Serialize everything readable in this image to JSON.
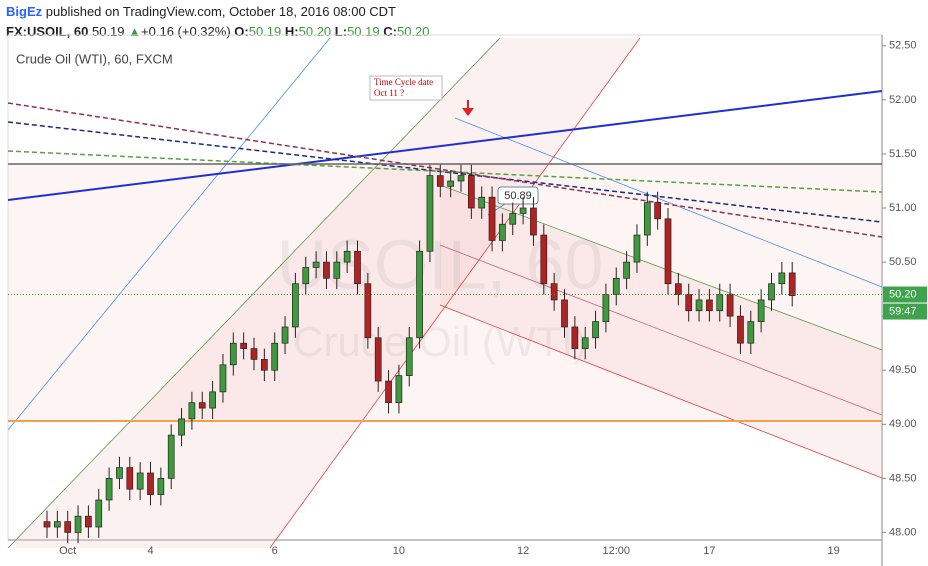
{
  "header": {
    "author": "BigEz",
    "published": "published on TradingView.com, October 18, 2016 08:00 CDT",
    "symbol": "FX:USOIL, 60",
    "last": "50.19",
    "arrow": "▲",
    "change": "+0.16 (+0.32%)",
    "o_label": "O:",
    "open": "50.19",
    "h_label": "H:",
    "high": "50.20",
    "l_label": "L:",
    "low": "50.19",
    "c_label": "C:",
    "close": "50.20"
  },
  "chart": {
    "watermark": "USOIL, 60",
    "watermark_sub": "Crude Oil (WTI)",
    "note_1": "Time Cycle date",
    "note_2": "Oct 11 ?",
    "callout": "50.89",
    "last_label": "50.20",
    "countdown": "59:47"
  },
  "chart_data": {
    "type": "candlestick",
    "title": "Crude Oil (WTI), 60, FXCM",
    "categories": [
      null,
      null,
      "Oct",
      null,
      null,
      null,
      null,
      null,
      null,
      null,
      "4",
      null,
      null,
      null,
      null,
      null,
      null,
      null,
      null,
      null,
      null,
      null,
      "6",
      null,
      null,
      null,
      null,
      null,
      null,
      null,
      null,
      null,
      null,
      null,
      "10",
      null,
      null,
      null,
      null,
      null,
      null,
      null,
      null,
      null,
      null,
      null,
      "12",
      null,
      null,
      null,
      null,
      null,
      null,
      null,
      null,
      "12:00",
      null,
      null,
      null,
      null,
      null,
      null,
      null,
      null,
      "17",
      null,
      null,
      null,
      null,
      null,
      null,
      null,
      null,
      null,
      null,
      null,
      "19"
    ],
    "open": [
      48.1,
      48.05,
      48.1,
      48.0,
      48.15,
      48.05,
      48.3,
      48.5,
      48.6,
      48.4,
      48.55,
      48.35,
      48.5,
      48.9,
      49.05,
      49.2,
      49.15,
      49.3,
      49.55,
      49.75,
      49.7,
      49.6,
      49.5,
      49.75,
      49.9,
      50.3,
      50.45,
      50.5,
      50.35,
      50.5,
      50.6,
      50.3,
      49.8,
      49.4,
      49.2,
      49.45,
      49.8,
      50.6,
      51.3,
      51.2,
      51.25,
      51.3,
      51.0,
      51.1,
      50.7,
      50.85,
      50.95,
      51.0,
      50.75,
      50.3,
      50.15,
      49.9,
      49.7,
      49.8,
      49.95,
      50.2,
      50.35,
      50.5,
      50.75,
      51.05,
      50.9,
      50.3,
      50.2,
      50.05,
      50.15,
      50.05,
      50.2,
      50.0,
      49.75,
      49.95,
      50.15,
      50.3,
      50.4,
      null,
      null,
      null,
      null
    ],
    "high": [
      48.2,
      48.2,
      48.2,
      48.25,
      48.25,
      48.4,
      48.6,
      48.7,
      48.7,
      48.65,
      48.65,
      48.6,
      49.0,
      49.15,
      49.3,
      49.3,
      49.4,
      49.65,
      49.85,
      49.85,
      49.8,
      49.7,
      49.85,
      50.0,
      50.4,
      50.55,
      50.6,
      50.6,
      50.6,
      50.7,
      50.7,
      50.4,
      49.9,
      49.5,
      49.55,
      49.9,
      50.7,
      51.4,
      51.4,
      51.35,
      51.4,
      51.4,
      51.2,
      51.2,
      50.95,
      51.05,
      51.1,
      51.1,
      50.85,
      50.4,
      50.25,
      50.0,
      49.9,
      50.05,
      50.3,
      50.45,
      50.6,
      50.85,
      51.15,
      51.15,
      51.0,
      50.4,
      50.3,
      50.25,
      50.25,
      50.3,
      50.3,
      50.1,
      50.05,
      50.25,
      50.4,
      50.5,
      50.5,
      null,
      null,
      null,
      null
    ],
    "low": [
      47.95,
      47.95,
      47.9,
      47.9,
      47.95,
      47.95,
      48.2,
      48.4,
      48.3,
      48.3,
      48.25,
      48.25,
      48.4,
      48.8,
      48.95,
      49.05,
      49.05,
      49.2,
      49.45,
      49.6,
      49.5,
      49.4,
      49.4,
      49.65,
      49.8,
      50.2,
      50.35,
      50.25,
      50.25,
      50.4,
      50.2,
      49.7,
      49.3,
      49.1,
      49.1,
      49.35,
      49.7,
      50.5,
      51.1,
      51.1,
      51.15,
      50.9,
      50.9,
      50.6,
      50.6,
      50.75,
      50.85,
      50.65,
      50.2,
      50.05,
      49.8,
      49.6,
      49.6,
      49.7,
      49.85,
      50.1,
      50.25,
      50.4,
      50.65,
      50.8,
      50.2,
      50.1,
      49.95,
      49.95,
      49.95,
      49.95,
      49.9,
      49.65,
      49.65,
      49.85,
      50.05,
      50.2,
      50.09,
      null,
      null,
      null,
      null
    ],
    "close": [
      48.05,
      48.1,
      48.0,
      48.15,
      48.05,
      48.3,
      48.5,
      48.6,
      48.4,
      48.55,
      48.35,
      48.5,
      48.9,
      49.05,
      49.2,
      49.15,
      49.3,
      49.55,
      49.75,
      49.7,
      49.6,
      49.5,
      49.75,
      49.9,
      50.3,
      50.45,
      50.5,
      50.35,
      50.5,
      50.6,
      50.3,
      49.8,
      49.4,
      49.2,
      49.45,
      49.8,
      50.6,
      51.3,
      51.2,
      51.25,
      51.3,
      51.0,
      51.1,
      50.7,
      50.85,
      50.95,
      51.0,
      50.75,
      50.3,
      50.15,
      49.9,
      49.7,
      49.8,
      49.95,
      50.2,
      50.35,
      50.5,
      50.75,
      51.05,
      50.9,
      50.3,
      50.2,
      50.05,
      50.15,
      50.05,
      50.2,
      50.0,
      49.75,
      49.95,
      50.15,
      50.3,
      50.4,
      50.19,
      null,
      null,
      null,
      null
    ],
    "up_color": "#3f9a3f",
    "down_color": "#b32222",
    "ylim": [
      47.93,
      52.6
    ],
    "yticks": [
      {
        "value": 48,
        "label": "48.00"
      },
      {
        "value": 48.5,
        "label": "48.50"
      },
      {
        "value": 49,
        "label": "49.00"
      },
      {
        "value": 49.5,
        "label": "49.50"
      },
      {
        "value": 50,
        "label": "50.00"
      },
      {
        "value": 50.5,
        "label": "50.50"
      },
      {
        "value": 51,
        "label": "51.00"
      },
      {
        "value": 51.5,
        "label": "51.50"
      },
      {
        "value": 52,
        "label": "52.00"
      },
      {
        "value": 52.5,
        "label": "52.50"
      }
    ],
    "last_price": 50.2
  }
}
